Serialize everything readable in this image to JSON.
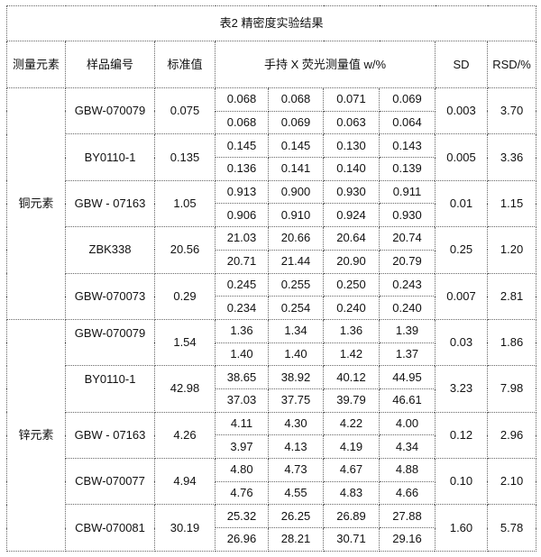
{
  "title": "表2  精密度实验结果",
  "headers": {
    "element": "测量元素",
    "sample": "样品编号",
    "standard": "标准值",
    "measured": "手持 X 荧光测量值 w/%",
    "sd": "SD",
    "rsd": "RSD/%"
  },
  "groups": [
    {
      "element": "铜元素",
      "samples": [
        {
          "id": "GBW-070079",
          "standard": "0.075",
          "row1": [
            "0.068",
            "0.068",
            "0.071",
            "0.069"
          ],
          "row2": [
            "0.068",
            "0.069",
            "0.063",
            "0.064"
          ],
          "sd": "0.003",
          "rsd": "3.70"
        },
        {
          "id": "BY0110-1",
          "standard": "0.135",
          "row1": [
            "0.145",
            "0.145",
            "0.130",
            "0.143"
          ],
          "row2": [
            "0.136",
            "0.141",
            "0.140",
            "0.139"
          ],
          "sd": "0.005",
          "rsd": "3.36"
        },
        {
          "id": "GBW - 07163",
          "standard": "1.05",
          "row1": [
            "0.913",
            "0.900",
            "0.930",
            "0.911"
          ],
          "row2": [
            "0.906",
            "0.910",
            "0.924",
            "0.930"
          ],
          "sd": "0.01",
          "rsd": "1.15"
        },
        {
          "id": "ZBK338",
          "standard": "20.56",
          "row1": [
            "21.03",
            "20.66",
            "20.64",
            "20.74"
          ],
          "row2": [
            "20.71",
            "21.44",
            "20.90",
            "20.79"
          ],
          "sd": "0.25",
          "rsd": "1.20"
        },
        {
          "id": "GBW-070073",
          "standard": "0.29",
          "row1": [
            "0.245",
            "0.255",
            "0.250",
            "0.243"
          ],
          "row2": [
            "0.234",
            "0.254",
            "0.240",
            "0.240"
          ],
          "sd": "0.007",
          "rsd": "2.81"
        }
      ]
    },
    {
      "element": "锌元素",
      "samples": [
        {
          "id": "GBW-070079",
          "standard": "1.54",
          "row1": [
            "1.36",
            "1.34",
            "1.36",
            "1.39"
          ],
          "row2": [
            "1.40",
            "1.40",
            "1.42",
            "1.37"
          ],
          "sd": "0.03",
          "rsd": "1.86",
          "id_top": true
        },
        {
          "id": "BY0110-1",
          "standard": "42.98",
          "row1": [
            "38.65",
            "38.92",
            "40.12",
            "44.95"
          ],
          "row2": [
            "37.03",
            "37.75",
            "39.79",
            "46.61"
          ],
          "sd": "3.23",
          "rsd": "7.98",
          "id_top": true
        },
        {
          "id": "GBW - 07163",
          "standard": "4.26",
          "row1": [
            "4.11",
            "4.30",
            "4.22",
            "4.00"
          ],
          "row2": [
            "3.97",
            "4.13",
            "4.19",
            "4.34"
          ],
          "sd": "0.12",
          "rsd": "2.96"
        },
        {
          "id": "CBW-070077",
          "standard": "4.94",
          "row1": [
            "4.80",
            "4.73",
            "4.67",
            "4.88"
          ],
          "row2": [
            "4.76",
            "4.55",
            "4.83",
            "4.66"
          ],
          "sd": "0.10",
          "rsd": "2.10"
        },
        {
          "id": "CBW-070081",
          "standard": "30.19",
          "row1": [
            "25.32",
            "26.25",
            "26.89",
            "27.88"
          ],
          "row2": [
            "26.96",
            "28.21",
            "30.71",
            "29.16"
          ],
          "sd": "1.60",
          "rsd": "5.78"
        }
      ]
    }
  ]
}
